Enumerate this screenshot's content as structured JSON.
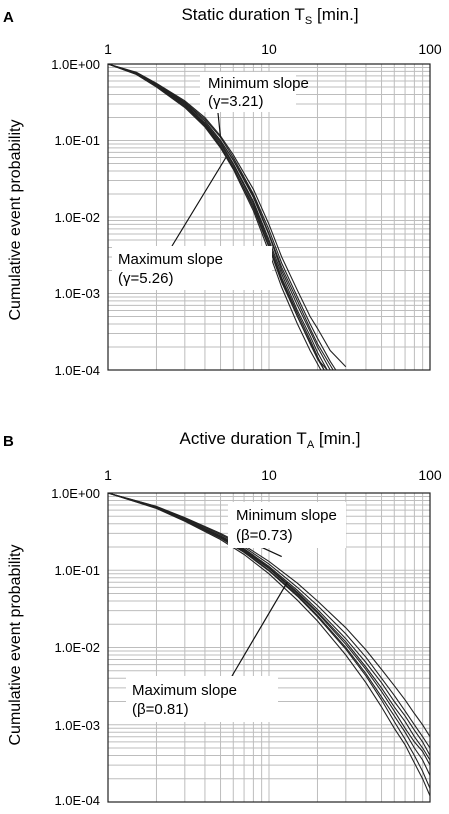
{
  "chart_data": [
    {
      "panel_letter": "A",
      "type": "line",
      "title": "Static duration T",
      "title_subscript": "S",
      "title_unit": " [min.]",
      "xscale": "log",
      "yscale": "log",
      "xlim": [
        1,
        100
      ],
      "ylim": [
        0.0001,
        1
      ],
      "x_ticks": [
        "1",
        "10",
        "100"
      ],
      "y_ticks": [
        "1.0E+00",
        "1.0E-01",
        "1.0E-02",
        "1.0E-03",
        "1.0E-04"
      ],
      "ylabel": "Cumulative event probability",
      "grid": true,
      "annotations": [
        {
          "line1": "Minimum slope",
          "line2": "(γ=3.21)",
          "pointer_x": 5.0,
          "pointer_y": 0.11
        },
        {
          "line1": "Maximum slope",
          "line2": "(γ=5.26)",
          "pointer_x": 5.4,
          "pointer_y": 0.06
        }
      ],
      "series": [
        {
          "x": [
            1,
            1.5,
            2,
            3,
            4,
            5,
            6,
            8,
            10,
            12,
            15,
            18,
            20,
            23
          ],
          "y": [
            1,
            0.75,
            0.52,
            0.3,
            0.17,
            0.095,
            0.05,
            0.016,
            0.005,
            0.0018,
            0.0006,
            0.00028,
            0.00017,
            0.0001
          ]
        },
        {
          "x": [
            1,
            1.5,
            2,
            3,
            4,
            5,
            6,
            8,
            10,
            12,
            15,
            18,
            20,
            22
          ],
          "y": [
            1,
            0.74,
            0.51,
            0.28,
            0.16,
            0.085,
            0.045,
            0.013,
            0.004,
            0.0014,
            0.0005,
            0.00022,
            0.00014,
            0.0001
          ]
        },
        {
          "x": [
            1,
            1.5,
            2,
            3,
            4,
            5,
            6,
            8,
            10,
            12,
            15,
            18,
            20,
            24
          ],
          "y": [
            1,
            0.76,
            0.53,
            0.31,
            0.18,
            0.1,
            0.055,
            0.018,
            0.0058,
            0.002,
            0.0007,
            0.00032,
            0.0002,
            0.0001
          ]
        },
        {
          "x": [
            1,
            1.5,
            2,
            3,
            4,
            5,
            6,
            8,
            10,
            12,
            15,
            18,
            21
          ],
          "y": [
            1,
            0.73,
            0.5,
            0.27,
            0.15,
            0.08,
            0.042,
            0.012,
            0.0035,
            0.0012,
            0.0004,
            0.00018,
            0.0001
          ]
        },
        {
          "x": [
            1,
            1.5,
            2,
            3,
            4,
            5,
            6,
            8,
            10,
            12,
            15,
            18,
            20,
            24,
            26
          ],
          "y": [
            1,
            0.77,
            0.55,
            0.32,
            0.19,
            0.11,
            0.06,
            0.02,
            0.0068,
            0.0025,
            0.0009,
            0.0004,
            0.00026,
            0.00013,
            0.0001
          ]
        },
        {
          "x": [
            1,
            1.5,
            2,
            3,
            4,
            5,
            6,
            8,
            10,
            12,
            15,
            18,
            20,
            22
          ],
          "y": [
            1,
            0.75,
            0.52,
            0.29,
            0.165,
            0.09,
            0.048,
            0.015,
            0.0046,
            0.0016,
            0.00055,
            0.00025,
            0.00015,
            0.0001
          ]
        },
        {
          "x": [
            1,
            1.5,
            2,
            3,
            4,
            5,
            6,
            8,
            10,
            12,
            15,
            18,
            20,
            24,
            30
          ],
          "y": [
            1,
            0.78,
            0.56,
            0.33,
            0.2,
            0.115,
            0.065,
            0.023,
            0.008,
            0.003,
            0.0011,
            0.0005,
            0.00035,
            0.00018,
            0.00011
          ]
        },
        {
          "x": [
            1,
            1.5,
            2,
            3,
            4,
            5,
            6,
            8,
            10,
            12,
            15,
            18,
            20,
            23
          ],
          "y": [
            1,
            0.74,
            0.51,
            0.28,
            0.155,
            0.083,
            0.044,
            0.014,
            0.0042,
            0.0015,
            0.0005,
            0.00023,
            0.00014,
            0.0001
          ]
        },
        {
          "x": [
            1,
            1.5,
            2,
            3,
            4,
            5,
            6,
            8,
            10,
            12,
            15,
            18,
            20,
            25
          ],
          "y": [
            1,
            0.76,
            0.54,
            0.31,
            0.18,
            0.1,
            0.056,
            0.019,
            0.006,
            0.0022,
            0.0008,
            0.00035,
            0.00022,
            0.0001
          ]
        }
      ]
    },
    {
      "panel_letter": "B",
      "type": "line",
      "title": "Active duration T",
      "title_subscript": "A",
      "title_unit": " [min.]",
      "xscale": "log",
      "yscale": "log",
      "xlim": [
        1,
        100
      ],
      "ylim": [
        0.0001,
        1
      ],
      "x_ticks": [
        "1",
        "10",
        "100"
      ],
      "y_ticks": [
        "1.0E+00",
        "1.0E-01",
        "1.0E-02",
        "1.0E-03",
        "1.0E-04"
      ],
      "ylabel": "Cumulative event probability",
      "grid": true,
      "annotations": [
        {
          "line1": "Minimum slope",
          "line2": "(β=0.73)",
          "pointer_x": 12,
          "pointer_y": 0.15
        },
        {
          "line1": "Maximum slope",
          "line2": "(β=0.81)",
          "pointer_x": 13,
          "pointer_y": 0.07
        }
      ],
      "series": [
        {
          "x": [
            1,
            2,
            3,
            5,
            7,
            10,
            15,
            20,
            30,
            40,
            50,
            60,
            70,
            80,
            90,
            100
          ],
          "y": [
            1,
            0.65,
            0.45,
            0.27,
            0.18,
            0.105,
            0.05,
            0.028,
            0.011,
            0.0052,
            0.0027,
            0.0015,
            0.0009,
            0.0006,
            0.00045,
            0.0003
          ]
        },
        {
          "x": [
            1,
            2,
            3,
            5,
            7,
            10,
            15,
            20,
            30,
            40,
            50,
            60,
            70,
            80,
            90,
            100
          ],
          "y": [
            1,
            0.66,
            0.47,
            0.29,
            0.2,
            0.12,
            0.06,
            0.035,
            0.015,
            0.0075,
            0.004,
            0.0024,
            0.0015,
            0.001,
            0.0007,
            0.0005
          ]
        },
        {
          "x": [
            1,
            2,
            3,
            5,
            7,
            10,
            15,
            20,
            30,
            40,
            50,
            60,
            70,
            80,
            90,
            100
          ],
          "y": [
            1,
            0.64,
            0.44,
            0.26,
            0.17,
            0.098,
            0.046,
            0.025,
            0.0095,
            0.0043,
            0.0021,
            0.0011,
            0.00065,
            0.0004,
            0.00025,
            0.00015
          ]
        },
        {
          "x": [
            1,
            2,
            3,
            5,
            7,
            10,
            15,
            20,
            30,
            40,
            50,
            60,
            70,
            80,
            90,
            100
          ],
          "y": [
            1,
            0.67,
            0.48,
            0.3,
            0.21,
            0.13,
            0.068,
            0.04,
            0.018,
            0.0093,
            0.0052,
            0.0032,
            0.0021,
            0.0014,
            0.001,
            0.0007
          ]
        },
        {
          "x": [
            1,
            2,
            3,
            5,
            7,
            10,
            15,
            20,
            30,
            40,
            50,
            60,
            70,
            80,
            90,
            100
          ],
          "y": [
            1,
            0.63,
            0.43,
            0.25,
            0.16,
            0.09,
            0.041,
            0.022,
            0.008,
            0.0035,
            0.0017,
            0.0009,
            0.00055,
            0.00032,
            0.0002,
            0.00012
          ]
        },
        {
          "x": [
            1,
            2,
            3,
            5,
            7,
            10,
            15,
            20,
            30,
            40,
            50,
            60,
            70,
            80,
            90,
            100
          ],
          "y": [
            1,
            0.665,
            0.46,
            0.28,
            0.19,
            0.112,
            0.055,
            0.031,
            0.013,
            0.0064,
            0.0035,
            0.002,
            0.0013,
            0.00085,
            0.0006,
            0.0004
          ]
        },
        {
          "x": [
            1,
            2,
            3,
            5,
            7,
            10,
            15,
            20,
            30,
            40,
            50,
            60,
            70,
            80,
            90,
            100
          ],
          "y": [
            1,
            0.645,
            0.445,
            0.265,
            0.175,
            0.1,
            0.048,
            0.026,
            0.01,
            0.0046,
            0.0023,
            0.0013,
            0.0008,
            0.0005,
            0.00035,
            0.00022
          ]
        },
        {
          "x": [
            1,
            2,
            3,
            5,
            7,
            10,
            15,
            20,
            30,
            40,
            50,
            60,
            70,
            80,
            90,
            100
          ],
          "y": [
            1,
            0.655,
            0.455,
            0.275,
            0.185,
            0.108,
            0.052,
            0.029,
            0.0118,
            0.0056,
            0.003,
            0.0017,
            0.0011,
            0.0007,
            0.0005,
            0.00035
          ]
        }
      ]
    }
  ]
}
